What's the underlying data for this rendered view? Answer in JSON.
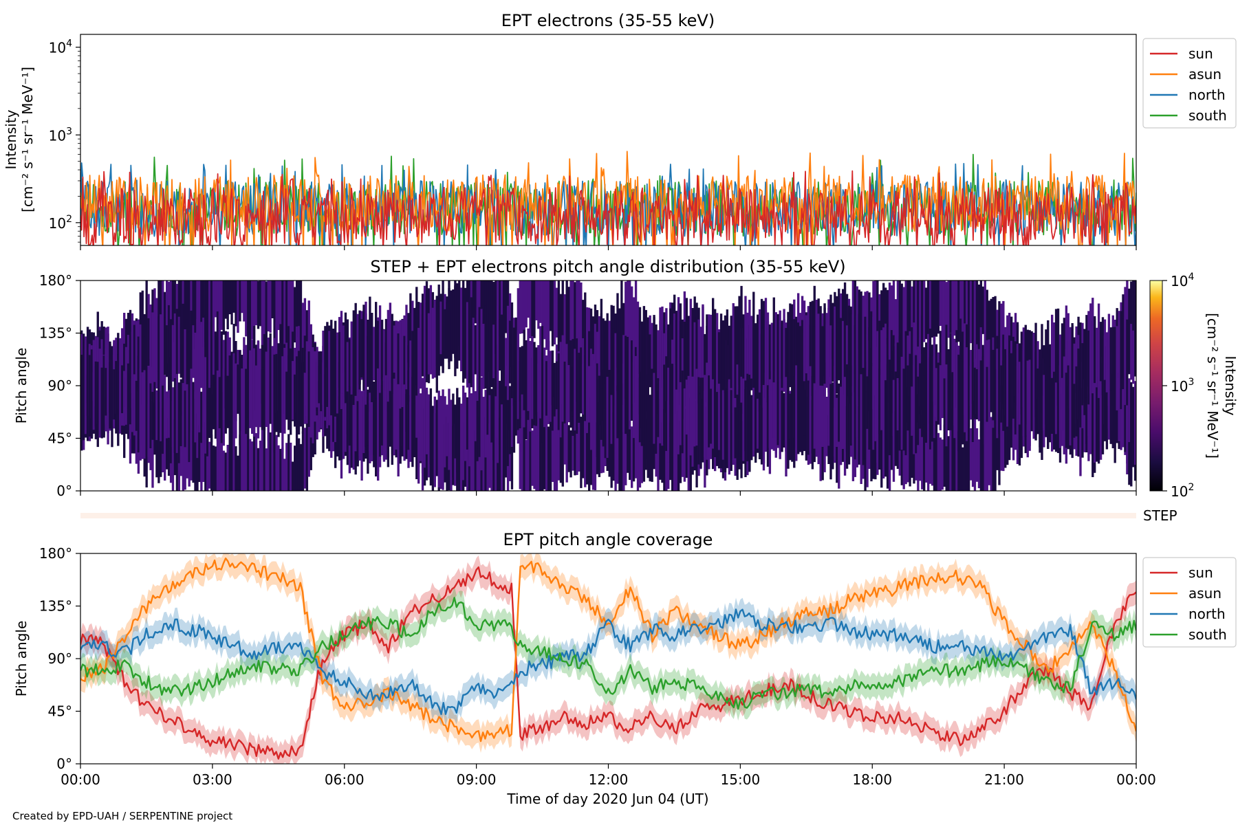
{
  "colors": {
    "sun": "#d62728",
    "asun": "#ff7f0e",
    "north": "#1f77b4",
    "south": "#2ca02c",
    "step_bar": "#fdf0e8",
    "pad_low": "#1b0c41",
    "pad_mid": "#4b1483"
  },
  "credit": "Created by EPD-UAH / SERPENTINE project",
  "xaxis": {
    "label": "Time of day 2020 Jun 04 (UT)",
    "range_hours": [
      0,
      24
    ],
    "ticks": [
      {
        "hour": 0,
        "label": "00:00"
      },
      {
        "hour": 3,
        "label": "03:00"
      },
      {
        "hour": 6,
        "label": "06:00"
      },
      {
        "hour": 9,
        "label": "09:00"
      },
      {
        "hour": 12,
        "label": "12:00"
      },
      {
        "hour": 15,
        "label": "15:00"
      },
      {
        "hour": 18,
        "label": "18:00"
      },
      {
        "hour": 21,
        "label": "21:00"
      },
      {
        "hour": 24,
        "label": "00:00"
      }
    ]
  },
  "step_label": "STEP",
  "chart_data": [
    {
      "id": "ept-intensity",
      "type": "line",
      "title": "EPT electrons (35-55 keV)",
      "ylabel_line1": "Intensity",
      "ylabel_line2": "[cm⁻² s⁻¹ sr⁻¹ MeV⁻¹]",
      "yscale": "log",
      "ylim": [
        55,
        14000
      ],
      "yticks": [
        {
          "value": 100,
          "base": "10",
          "exp": "2"
        },
        {
          "value": 1000,
          "base": "10",
          "exp": "3"
        },
        {
          "value": 10000,
          "base": "10",
          "exp": "4"
        }
      ],
      "legend": [
        "sun",
        "asun",
        "north",
        "south"
      ],
      "series": [
        {
          "name": "sun",
          "typical_range": [
            55,
            250
          ],
          "peak": 400
        },
        {
          "name": "asun",
          "typical_range": [
            80,
            350
          ],
          "peak": 700
        },
        {
          "name": "north",
          "typical_range": [
            70,
            300
          ],
          "peak": 480
        },
        {
          "name": "south",
          "typical_range": [
            70,
            300
          ],
          "peak": 600
        }
      ]
    },
    {
      "id": "pad-spectrogram",
      "type": "heatmap",
      "title": "STEP + EPT electrons pitch angle distribution (35-55 keV)",
      "ylabel": "Pitch angle",
      "ylim": [
        0,
        180
      ],
      "yticks": [
        {
          "value": 0,
          "label": "0°"
        },
        {
          "value": 45,
          "label": "45°"
        },
        {
          "value": 90,
          "label": "90°"
        },
        {
          "value": 135,
          "label": "135°"
        },
        {
          "value": 180,
          "label": "180°"
        }
      ],
      "colorbar": {
        "label_line1": "Intensity",
        "label_line2": "[cm⁻² s⁻¹ sr⁻¹ MeV⁻¹]",
        "scale": "log",
        "range": [
          100,
          10000
        ],
        "ticks": [
          {
            "value": 100,
            "base": "10",
            "exp": "2"
          },
          {
            "value": 1000,
            "base": "10",
            "exp": "3"
          },
          {
            "value": 10000,
            "base": "10",
            "exp": "4"
          }
        ]
      }
    },
    {
      "id": "pitch-coverage",
      "type": "line",
      "title": "EPT pitch angle coverage",
      "ylabel": "Pitch angle",
      "ylim": [
        0,
        180
      ],
      "yticks": [
        {
          "value": 0,
          "label": "0°"
        },
        {
          "value": 45,
          "label": "45°"
        },
        {
          "value": 90,
          "label": "90°"
        },
        {
          "value": 135,
          "label": "135°"
        },
        {
          "value": 180,
          "label": "180°"
        }
      ],
      "legend": [
        "sun",
        "asun",
        "north",
        "south"
      ],
      "band_halfwidth_deg": 10,
      "x_hours": [
        0,
        0.5,
        1,
        1.5,
        2,
        2.5,
        3,
        3.5,
        4,
        4.5,
        5,
        5.5,
        6,
        6.5,
        7,
        7.5,
        8,
        8.5,
        9,
        9.5,
        9.8,
        10,
        10.5,
        11,
        11.5,
        12,
        12.5,
        13,
        13.5,
        14,
        14.5,
        15,
        15.5,
        16,
        16.5,
        17,
        17.5,
        18,
        18.5,
        19,
        19.5,
        20,
        20.5,
        21,
        21.5,
        22,
        22.5,
        23,
        23.5,
        24
      ],
      "series": [
        {
          "name": "sun",
          "values": [
            105,
            105,
            70,
            50,
            40,
            30,
            20,
            15,
            12,
            10,
            10,
            90,
            110,
            120,
            100,
            130,
            140,
            150,
            165,
            155,
            150,
            25,
            30,
            40,
            35,
            40,
            30,
            40,
            30,
            45,
            50,
            55,
            60,
            70,
            60,
            50,
            45,
            40,
            40,
            35,
            25,
            20,
            30,
            45,
            70,
            80,
            60,
            50,
            120,
            150
          ]
        },
        {
          "name": "asun",
          "values": [
            75,
            80,
            110,
            135,
            150,
            160,
            170,
            170,
            165,
            160,
            150,
            70,
            50,
            50,
            60,
            50,
            40,
            30,
            25,
            25,
            30,
            170,
            165,
            150,
            140,
            120,
            150,
            110,
            130,
            120,
            110,
            100,
            110,
            120,
            130,
            130,
            140,
            145,
            150,
            155,
            160,
            160,
            150,
            120,
            100,
            80,
            100,
            120,
            80,
            30
          ]
        },
        {
          "name": "north",
          "values": [
            100,
            100,
            95,
            110,
            120,
            115,
            110,
            100,
            95,
            100,
            100,
            80,
            70,
            60,
            60,
            70,
            50,
            45,
            65,
            60,
            65,
            80,
            85,
            90,
            95,
            120,
            100,
            115,
            110,
            115,
            120,
            130,
            120,
            120,
            115,
            120,
            115,
            110,
            110,
            105,
            100,
            100,
            95,
            90,
            100,
            110,
            115,
            60,
            70,
            60
          ]
        },
        {
          "name": "south",
          "values": [
            80,
            80,
            85,
            70,
            60,
            65,
            70,
            80,
            85,
            80,
            80,
            100,
            110,
            120,
            120,
            110,
            130,
            140,
            120,
            120,
            115,
            100,
            95,
            90,
            85,
            60,
            80,
            65,
            70,
            65,
            60,
            50,
            60,
            60,
            65,
            60,
            65,
            70,
            70,
            75,
            80,
            80,
            85,
            90,
            80,
            70,
            65,
            120,
            110,
            120
          ]
        }
      ]
    }
  ]
}
